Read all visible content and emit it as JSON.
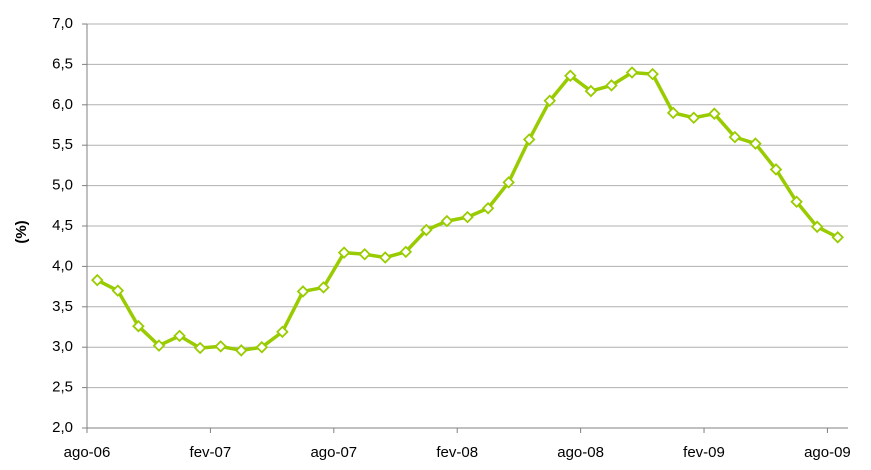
{
  "chart_data": {
    "type": "line",
    "y_label": "(%)",
    "categories": [
      "ago-06",
      null,
      null,
      null,
      null,
      null,
      "fev-07",
      null,
      null,
      null,
      null,
      null,
      "ago-07",
      null,
      null,
      null,
      null,
      null,
      "fev-08",
      null,
      null,
      null,
      null,
      null,
      "ago-08",
      null,
      null,
      null,
      null,
      null,
      "fev-09",
      null,
      null,
      null,
      null,
      null,
      "ago-09"
    ],
    "series": [
      {
        "color": "#99cc00",
        "values": [
          3.83,
          3.7,
          3.26,
          3.02,
          3.14,
          2.99,
          3.01,
          2.96,
          3.0,
          3.19,
          3.69,
          3.74,
          4.17,
          4.15,
          4.11,
          4.18,
          4.45,
          4.56,
          4.61,
          4.72,
          5.04,
          5.57,
          6.05,
          6.36,
          6.17,
          6.24,
          6.4,
          6.38,
          5.9,
          5.84,
          5.89,
          5.6,
          5.52,
          5.2,
          4.8,
          4.49,
          4.36
        ]
      }
    ],
    "ylim": [
      2.0,
      7.0
    ],
    "yticks": [
      {
        "value": 2.0,
        "label": "2,0"
      },
      {
        "value": 2.5,
        "label": "2,5"
      },
      {
        "value": 3.0,
        "label": "3,0"
      },
      {
        "value": 3.5,
        "label": "3,5"
      },
      {
        "value": 4.0,
        "label": "4,0"
      },
      {
        "value": 4.5,
        "label": "4,5"
      },
      {
        "value": 5.0,
        "label": "5,0"
      },
      {
        "value": 5.5,
        "label": "5,5"
      },
      {
        "value": 6.0,
        "label": "6,0"
      },
      {
        "value": 6.5,
        "label": "6,5"
      },
      {
        "value": 7.0,
        "label": "7,0"
      }
    ],
    "grid": true
  }
}
